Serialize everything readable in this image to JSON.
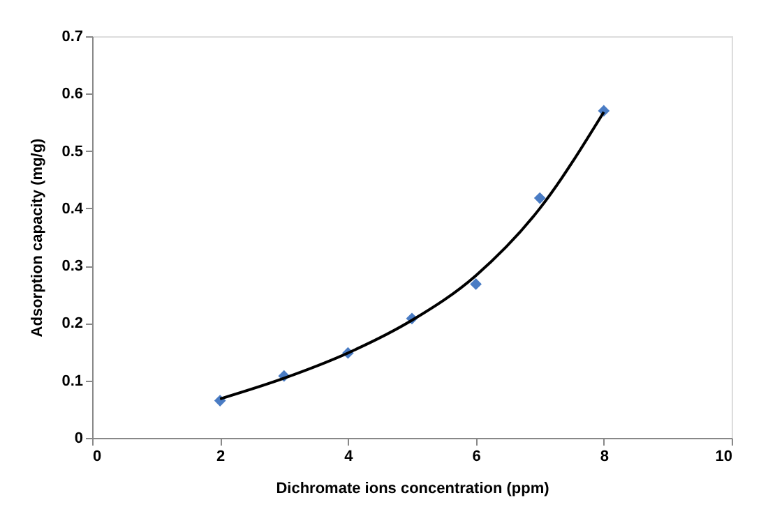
{
  "chart_data": {
    "type": "scatter",
    "xlabel": "Dichromate ions concentration (ppm)",
    "ylabel": "Adsorption capacity (mg/g)",
    "x": [
      2,
      3,
      4,
      5,
      6,
      7,
      8
    ],
    "series": [
      {
        "color": "#4a7cc4",
        "marker": "diamond",
        "values": [
          0.065,
          0.108,
          0.148,
          0.208,
          0.268,
          0.418,
          0.57
        ]
      },
      {
        "type": "line",
        "color": "#000000",
        "marker": "none",
        "x": [
          2,
          3,
          4,
          5,
          6,
          7,
          8
        ],
        "values": [
          0.068,
          0.104,
          0.148,
          0.205,
          0.283,
          0.4,
          0.568
        ]
      }
    ],
    "xlim": [
      0,
      10
    ],
    "xticks": [
      0,
      2,
      4,
      6,
      8,
      10
    ],
    "ylim": [
      0,
      0.7
    ],
    "yticks": [
      0,
      0.1,
      0.2,
      0.3,
      0.4,
      0.5,
      0.6,
      0.7
    ],
    "grid": false
  }
}
